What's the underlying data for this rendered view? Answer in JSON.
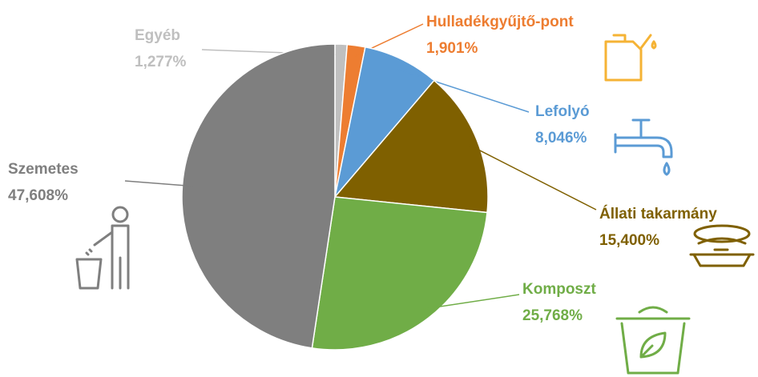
{
  "chart_data": {
    "type": "pie",
    "categories": [
      "Egyéb",
      "Hulladékgyűjtő-pont",
      "Lefolyó",
      "Állati takarmány",
      "Komposzt",
      "Szemetes"
    ],
    "values": [
      1.277,
      1.901,
      8.046,
      15.4,
      25.768,
      47.608
    ],
    "value_labels": [
      "1,277%",
      "1,901%",
      "8,046%",
      "15,400%",
      "25,768%",
      "47,608%"
    ],
    "colors": [
      "#bfbfbf",
      "#ed7d31",
      "#5b9bd5",
      "#7f6000",
      "#70ad47",
      "#7f7f7f"
    ]
  }
}
